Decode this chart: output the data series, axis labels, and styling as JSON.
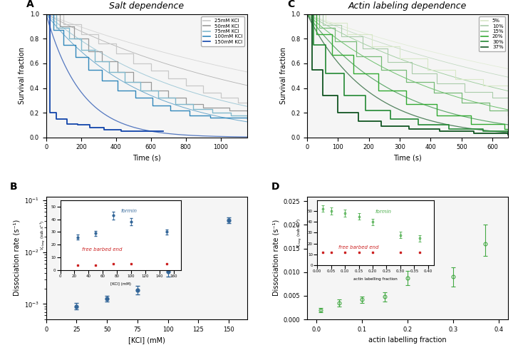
{
  "panel_A": {
    "title": "Salt dependence",
    "xlabel": "Time (s)",
    "ylabel": "Survival fraction",
    "xlim": [
      0,
      1150
    ],
    "ylim": [
      0.0,
      1.0
    ],
    "curves": [
      {
        "label": "25mM KCl",
        "color": "#c8c8c8",
        "lw": 0.9,
        "smooth_rate": 0.00055,
        "steps_t": [
          0,
          100,
          200,
          300,
          400,
          500,
          600,
          700,
          800,
          900,
          1000,
          1100,
          1150
        ],
        "steps_y": [
          1.0,
          0.92,
          0.84,
          0.76,
          0.68,
          0.6,
          0.54,
          0.48,
          0.42,
          0.36,
          0.32,
          0.28,
          0.27
        ]
      },
      {
        "label": "50mM KCl",
        "color": "#999999",
        "lw": 0.9,
        "smooth_rate": 0.00075,
        "steps_t": [
          0,
          80,
          160,
          240,
          320,
          410,
          500,
          600,
          700,
          800,
          900,
          1050,
          1150
        ],
        "steps_y": [
          1.0,
          0.9,
          0.8,
          0.7,
          0.62,
          0.53,
          0.45,
          0.38,
          0.32,
          0.27,
          0.24,
          0.22,
          0.21
        ]
      },
      {
        "label": "75mM KCl",
        "color": "#80b8cc",
        "lw": 1.0,
        "smooth_rate": 0.0012,
        "steps_t": [
          0,
          60,
          130,
          200,
          280,
          360,
          450,
          540,
          640,
          740,
          840,
          950,
          1060,
          1150
        ],
        "steps_y": [
          1.0,
          0.89,
          0.8,
          0.71,
          0.62,
          0.53,
          0.45,
          0.38,
          0.32,
          0.27,
          0.23,
          0.2,
          0.18,
          0.17
        ]
      },
      {
        "label": "100mM KCl",
        "color": "#3388bb",
        "lw": 1.0,
        "smooth_rate": 0.0018,
        "steps_t": [
          0,
          40,
          100,
          170,
          240,
          320,
          410,
          510,
          610,
          710,
          820,
          940,
          1060,
          1150
        ],
        "steps_y": [
          1.0,
          0.87,
          0.75,
          0.65,
          0.55,
          0.46,
          0.38,
          0.32,
          0.26,
          0.22,
          0.18,
          0.16,
          0.16,
          0.15
        ]
      },
      {
        "label": "150mM KCl",
        "color": "#1144aa",
        "lw": 1.3,
        "smooth_rate": 0.005,
        "steps_t": [
          0,
          20,
          60,
          120,
          180,
          250,
          330,
          430,
          530,
          640,
          670
        ],
        "steps_y": [
          1.0,
          0.2,
          0.15,
          0.11,
          0.1,
          0.08,
          0.06,
          0.05,
          0.05,
          0.05,
          0.05
        ]
      }
    ]
  },
  "panel_B": {
    "xlabel": "[KCl] (mM)",
    "ylabel": "Dissociation rate (s⁻¹)",
    "xlim": [
      10,
      165
    ],
    "x": [
      25,
      50,
      75,
      100,
      150
    ],
    "y": [
      0.0009,
      0.00125,
      0.00185,
      0.0042,
      0.042
    ],
    "yerr_lo": [
      0.00012,
      0.00015,
      0.0003,
      0.0008,
      0.005
    ],
    "yerr_hi": [
      0.00015,
      0.0002,
      0.0004,
      0.001,
      0.005
    ],
    "color": "#336699",
    "ylim": [
      0.0005,
      0.12
    ],
    "inset": {
      "xlim": [
        0,
        170
      ],
      "ylim": [
        0,
        55
      ],
      "yticks": [
        0,
        10,
        20,
        30,
        40,
        50
      ],
      "xlabel": "[KCl] (mM)",
      "formin_x": [
        25,
        50,
        75,
        100,
        150
      ],
      "formin_y": [
        26,
        29,
        43,
        38,
        30
      ],
      "formin_yerr": [
        2,
        2,
        3,
        3,
        2
      ],
      "fbe_x": [
        25,
        50,
        75,
        100,
        150
      ],
      "fbe_y": [
        4,
        4,
        5,
        5,
        5
      ],
      "formin_color": "#336699",
      "fbe_color": "#cc2222"
    }
  },
  "panel_C": {
    "title": "Actin labeling dependence",
    "xlabel": "Time (s)",
    "ylabel": "Survival fraction",
    "xlim": [
      0,
      650
    ],
    "ylim": [
      0.0,
      1.0
    ],
    "curves": [
      {
        "label": "5%",
        "color": "#d8e8c8",
        "lw": 0.8,
        "smooth_rate": 0.0009,
        "steps_t": [
          0,
          60,
          130,
          210,
          300,
          390,
          480,
          570,
          650
        ],
        "steps_y": [
          1.0,
          0.93,
          0.84,
          0.74,
          0.64,
          0.55,
          0.47,
          0.42,
          0.38
        ]
      },
      {
        "label": "10%",
        "color": "#aaccaa",
        "lw": 0.8,
        "smooth_rate": 0.0011,
        "steps_t": [
          0,
          50,
          110,
          180,
          260,
          340,
          420,
          510,
          600,
          650
        ],
        "steps_y": [
          1.0,
          0.91,
          0.82,
          0.72,
          0.61,
          0.52,
          0.44,
          0.37,
          0.32,
          0.28
        ]
      },
      {
        "label": "15%",
        "color": "#77bb77",
        "lw": 0.9,
        "smooth_rate": 0.0015,
        "steps_t": [
          0,
          40,
          90,
          160,
          240,
          320,
          410,
          500,
          590,
          650
        ],
        "steps_y": [
          1.0,
          0.89,
          0.78,
          0.66,
          0.55,
          0.45,
          0.36,
          0.28,
          0.22,
          0.18
        ]
      },
      {
        "label": "20%",
        "color": "#33aa33",
        "lw": 1.0,
        "smooth_rate": 0.0023,
        "steps_t": [
          0,
          30,
          80,
          150,
          230,
          320,
          420,
          530,
          640,
          650
        ],
        "steps_y": [
          1.0,
          0.84,
          0.67,
          0.52,
          0.38,
          0.27,
          0.18,
          0.11,
          0.07,
          0.06
        ]
      },
      {
        "label": "30%",
        "color": "#228833",
        "lw": 1.2,
        "smooth_rate": 0.0035,
        "steps_t": [
          0,
          20,
          60,
          120,
          190,
          270,
          360,
          460,
          570,
          650
        ],
        "steps_y": [
          1.0,
          0.75,
          0.52,
          0.34,
          0.22,
          0.15,
          0.1,
          0.07,
          0.05,
          0.04
        ]
      },
      {
        "label": "37%",
        "color": "#115522",
        "lw": 1.3,
        "smooth_rate": 0.005,
        "steps_t": [
          0,
          15,
          50,
          100,
          165,
          240,
          330,
          430,
          540,
          650
        ],
        "steps_y": [
          1.0,
          0.55,
          0.34,
          0.2,
          0.13,
          0.09,
          0.07,
          0.05,
          0.03,
          0.02
        ]
      }
    ]
  },
  "panel_D": {
    "xlabel": "actin labelling fraction",
    "ylabel": "Dissociation rate (s⁻¹)",
    "xlim": [
      -0.02,
      0.42
    ],
    "ylim": [
      0.0,
      0.026
    ],
    "x": [
      0.01,
      0.05,
      0.1,
      0.15,
      0.2,
      0.3,
      0.37
    ],
    "y": [
      0.002,
      0.0035,
      0.0042,
      0.0048,
      0.0087,
      0.009,
      0.016
    ],
    "yerr_lo": [
      0.0005,
      0.0008,
      0.0007,
      0.001,
      0.0015,
      0.002,
      0.0025
    ],
    "yerr_hi": [
      0.0005,
      0.0008,
      0.0007,
      0.001,
      0.0015,
      0.002,
      0.004
    ],
    "color": "#44aa44",
    "inset": {
      "xlim": [
        0.0,
        0.42
      ],
      "ylim": [
        0,
        60
      ],
      "yticks": [
        0,
        10,
        20,
        30,
        40,
        50
      ],
      "xlabel": "actin labelling fraction",
      "formin_x": [
        0.02,
        0.05,
        0.1,
        0.15,
        0.2,
        0.3,
        0.37
      ],
      "formin_y": [
        52,
        50,
        48,
        45,
        40,
        28,
        25
      ],
      "formin_yerr": [
        3,
        3,
        3,
        3,
        3,
        3,
        3
      ],
      "fbe_x": [
        0.02,
        0.05,
        0.1,
        0.15,
        0.2,
        0.3,
        0.37
      ],
      "fbe_y": [
        12,
        12,
        12,
        12,
        12,
        12,
        12
      ],
      "formin_color": "#44aa44",
      "fbe_color": "#cc2222"
    }
  },
  "bg_color": "#f5f5f5",
  "panel_label_fontsize": 10,
  "title_fontsize": 9,
  "axis_fontsize": 7,
  "tick_fontsize": 6
}
